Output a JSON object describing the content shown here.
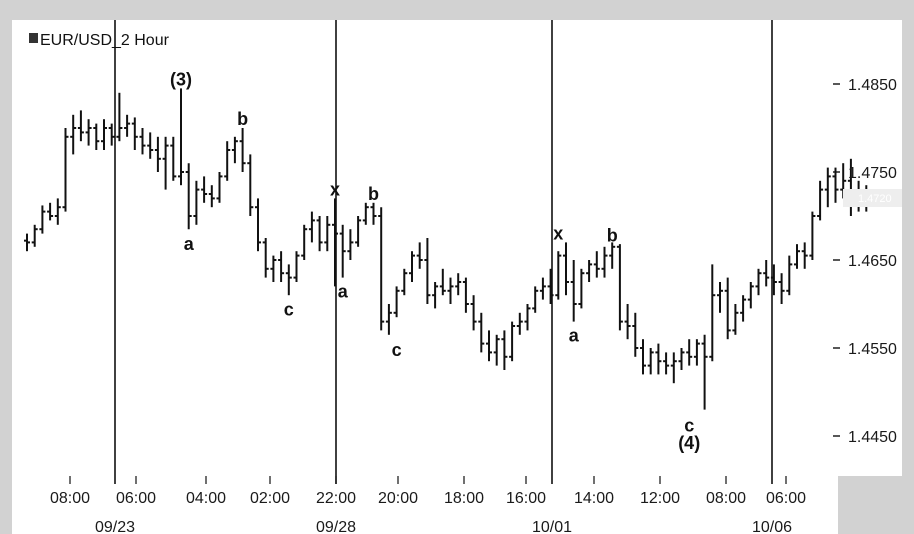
{
  "chart_data": {
    "type": "ohlc-bar",
    "title": "EUR/USD_2 Hour",
    "symbol_icon": "instrument-icon",
    "y_ticks": [
      "1.4850",
      "1.4750",
      "1.4650",
      "1.4550",
      "1.4450"
    ],
    "y_tick_values": [
      1.485,
      1.475,
      1.465,
      1.455,
      1.445
    ],
    "ylim": [
      1.4405,
      1.4905
    ],
    "last_price": "1.4720",
    "last_price_value": 1.472,
    "x_ticks": [
      "08:00",
      "06:00",
      "04:00",
      "02:00",
      "22:00",
      "20:00",
      "18:00",
      "16:00",
      "14:00",
      "12:00",
      "08:00",
      "06:00"
    ],
    "date_labels": [
      "09/23",
      "09/28",
      "10/01",
      "10/06"
    ],
    "grid": false,
    "session_dividers": 4,
    "bars": [
      [
        1.4672,
        1.468,
        1.466,
        1.467
      ],
      [
        1.467,
        1.469,
        1.4665,
        1.4685
      ],
      [
        1.4685,
        1.4712,
        1.468,
        1.4705
      ],
      [
        1.4705,
        1.4715,
        1.4695,
        1.47
      ],
      [
        1.47,
        1.472,
        1.469,
        1.471
      ],
      [
        1.471,
        1.48,
        1.4705,
        1.479
      ],
      [
        1.479,
        1.4815,
        1.477,
        1.48
      ],
      [
        1.48,
        1.482,
        1.4785,
        1.4795
      ],
      [
        1.4795,
        1.481,
        1.478,
        1.48
      ],
      [
        1.48,
        1.4805,
        1.4775,
        1.4785
      ],
      [
        1.4785,
        1.481,
        1.4775,
        1.48
      ],
      [
        1.48,
        1.4805,
        1.478,
        1.479
      ],
      [
        1.479,
        1.484,
        1.4785,
        1.48
      ],
      [
        1.48,
        1.4815,
        1.479,
        1.4805
      ],
      [
        1.4805,
        1.4812,
        1.4775,
        1.479
      ],
      [
        1.479,
        1.48,
        1.477,
        1.478
      ],
      [
        1.478,
        1.4795,
        1.4765,
        1.4775
      ],
      [
        1.4775,
        1.479,
        1.475,
        1.4765
      ],
      [
        1.4765,
        1.479,
        1.473,
        1.478
      ],
      [
        1.478,
        1.479,
        1.474,
        1.4745
      ],
      [
        1.4745,
        1.4845,
        1.4735,
        1.475
      ],
      [
        1.475,
        1.476,
        1.4685,
        1.47
      ],
      [
        1.47,
        1.474,
        1.469,
        1.473
      ],
      [
        1.473,
        1.4745,
        1.4715,
        1.4725
      ],
      [
        1.4725,
        1.4735,
        1.471,
        1.472
      ],
      [
        1.472,
        1.475,
        1.4715,
        1.4745
      ],
      [
        1.4745,
        1.4785,
        1.474,
        1.4775
      ],
      [
        1.4775,
        1.479,
        1.476,
        1.4785
      ],
      [
        1.4785,
        1.48,
        1.475,
        1.476
      ],
      [
        1.476,
        1.477,
        1.47,
        1.471
      ],
      [
        1.471,
        1.472,
        1.466,
        1.467
      ],
      [
        1.467,
        1.4675,
        1.463,
        1.464
      ],
      [
        1.464,
        1.4655,
        1.4625,
        1.465
      ],
      [
        1.465,
        1.466,
        1.4625,
        1.4635
      ],
      [
        1.4635,
        1.4645,
        1.461,
        1.463
      ],
      [
        1.463,
        1.466,
        1.4625,
        1.4655
      ],
      [
        1.4655,
        1.469,
        1.465,
        1.4685
      ],
      [
        1.4685,
        1.4705,
        1.467,
        1.4695
      ],
      [
        1.4695,
        1.47,
        1.466,
        1.467
      ],
      [
        1.467,
        1.47,
        1.466,
        1.469
      ],
      [
        1.469,
        1.472,
        1.462,
        1.468
      ],
      [
        1.468,
        1.469,
        1.463,
        1.466
      ],
      [
        1.466,
        1.4685,
        1.465,
        1.467
      ],
      [
        1.467,
        1.47,
        1.4665,
        1.4695
      ],
      [
        1.4695,
        1.4715,
        1.469,
        1.471
      ],
      [
        1.471,
        1.4715,
        1.469,
        1.47
      ],
      [
        1.47,
        1.471,
        1.457,
        1.458
      ],
      [
        1.458,
        1.46,
        1.4565,
        1.459
      ],
      [
        1.459,
        1.462,
        1.4585,
        1.4615
      ],
      [
        1.4615,
        1.464,
        1.461,
        1.4635
      ],
      [
        1.4635,
        1.466,
        1.4625,
        1.4655
      ],
      [
        1.4655,
        1.467,
        1.464,
        1.465
      ],
      [
        1.465,
        1.4675,
        1.46,
        1.461
      ],
      [
        1.461,
        1.4625,
        1.4595,
        1.462
      ],
      [
        1.462,
        1.464,
        1.461,
        1.4615
      ],
      [
        1.4615,
        1.463,
        1.46,
        1.462
      ],
      [
        1.462,
        1.4635,
        1.461,
        1.4625
      ],
      [
        1.4625,
        1.463,
        1.459,
        1.46
      ],
      [
        1.46,
        1.461,
        1.457,
        1.458
      ],
      [
        1.458,
        1.459,
        1.4545,
        1.4555
      ],
      [
        1.4555,
        1.457,
        1.4535,
        1.4545
      ],
      [
        1.4545,
        1.4565,
        1.453,
        1.456
      ],
      [
        1.456,
        1.457,
        1.4525,
        1.454
      ],
      [
        1.454,
        1.458,
        1.4535,
        1.4575
      ],
      [
        1.4575,
        1.459,
        1.4565,
        1.458
      ],
      [
        1.458,
        1.46,
        1.457,
        1.4595
      ],
      [
        1.4595,
        1.462,
        1.459,
        1.4615
      ],
      [
        1.4615,
        1.463,
        1.4605,
        1.462
      ],
      [
        1.462,
        1.464,
        1.46,
        1.461
      ],
      [
        1.461,
        1.466,
        1.4605,
        1.4655
      ],
      [
        1.4655,
        1.467,
        1.461,
        1.4625
      ],
      [
        1.4625,
        1.465,
        1.458,
        1.46
      ],
      [
        1.46,
        1.464,
        1.4595,
        1.4635
      ],
      [
        1.4635,
        1.465,
        1.4625,
        1.4645
      ],
      [
        1.4645,
        1.466,
        1.463,
        1.464
      ],
      [
        1.464,
        1.4665,
        1.463,
        1.4655
      ],
      [
        1.4655,
        1.467,
        1.464,
        1.4665
      ],
      [
        1.4665,
        1.4668,
        1.457,
        1.458
      ],
      [
        1.458,
        1.46,
        1.456,
        1.4575
      ],
      [
        1.4575,
        1.459,
        1.454,
        1.455
      ],
      [
        1.455,
        1.456,
        1.452,
        1.453
      ],
      [
        1.453,
        1.455,
        1.452,
        1.4545
      ],
      [
        1.4545,
        1.4555,
        1.452,
        1.4535
      ],
      [
        1.4535,
        1.4545,
        1.452,
        1.453
      ],
      [
        1.453,
        1.4545,
        1.451,
        1.4535
      ],
      [
        1.4535,
        1.455,
        1.4525,
        1.4545
      ],
      [
        1.4545,
        1.456,
        1.453,
        1.454
      ],
      [
        1.454,
        1.456,
        1.453,
        1.4555
      ],
      [
        1.4555,
        1.4565,
        1.448,
        1.454
      ],
      [
        1.454,
        1.4645,
        1.4535,
        1.461
      ],
      [
        1.461,
        1.4625,
        1.459,
        1.4615
      ],
      [
        1.4615,
        1.463,
        1.456,
        1.457
      ],
      [
        1.457,
        1.46,
        1.4565,
        1.459
      ],
      [
        1.459,
        1.461,
        1.458,
        1.4605
      ],
      [
        1.4605,
        1.4625,
        1.4595,
        1.462
      ],
      [
        1.462,
        1.464,
        1.461,
        1.4635
      ],
      [
        1.4635,
        1.465,
        1.462,
        1.463
      ],
      [
        1.463,
        1.4645,
        1.461,
        1.4625
      ],
      [
        1.4625,
        1.4635,
        1.46,
        1.4615
      ],
      [
        1.4615,
        1.4655,
        1.461,
        1.4645
      ],
      [
        1.4645,
        1.4668,
        1.464,
        1.466
      ],
      [
        1.466,
        1.467,
        1.464,
        1.4655
      ],
      [
        1.4655,
        1.4705,
        1.465,
        1.47
      ],
      [
        1.47,
        1.474,
        1.4695,
        1.473
      ],
      [
        1.473,
        1.4755,
        1.471,
        1.4745
      ],
      [
        1.4745,
        1.4755,
        1.4715,
        1.473
      ],
      [
        1.473,
        1.476,
        1.472,
        1.474
      ],
      [
        1.474,
        1.4765,
        1.47,
        1.472
      ],
      [
        1.472,
        1.474,
        1.4705,
        1.4715
      ],
      [
        1.4715,
        1.4735,
        1.4705,
        1.472
      ]
    ],
    "annotations": [
      {
        "text": "(3)",
        "bar": 20,
        "price": 1.4855
      },
      {
        "text": "a",
        "bar": 21,
        "price": 1.4668
      },
      {
        "text": "b",
        "bar": 28,
        "price": 1.481
      },
      {
        "text": "c",
        "bar": 34,
        "price": 1.4594
      },
      {
        "text": "x",
        "bar": 40,
        "price": 1.473
      },
      {
        "text": "a",
        "bar": 41,
        "price": 1.4614
      },
      {
        "text": "b",
        "bar": 45,
        "price": 1.4725
      },
      {
        "text": "c",
        "bar": 48,
        "price": 1.4548
      },
      {
        "text": "x",
        "bar": 69,
        "price": 1.468
      },
      {
        "text": "a",
        "bar": 71,
        "price": 1.4564
      },
      {
        "text": "b",
        "bar": 76,
        "price": 1.4678
      },
      {
        "text": "c",
        "bar": 86,
        "price": 1.4462
      },
      {
        "text": "(4)",
        "bar": 86,
        "price": 1.4442
      }
    ]
  }
}
